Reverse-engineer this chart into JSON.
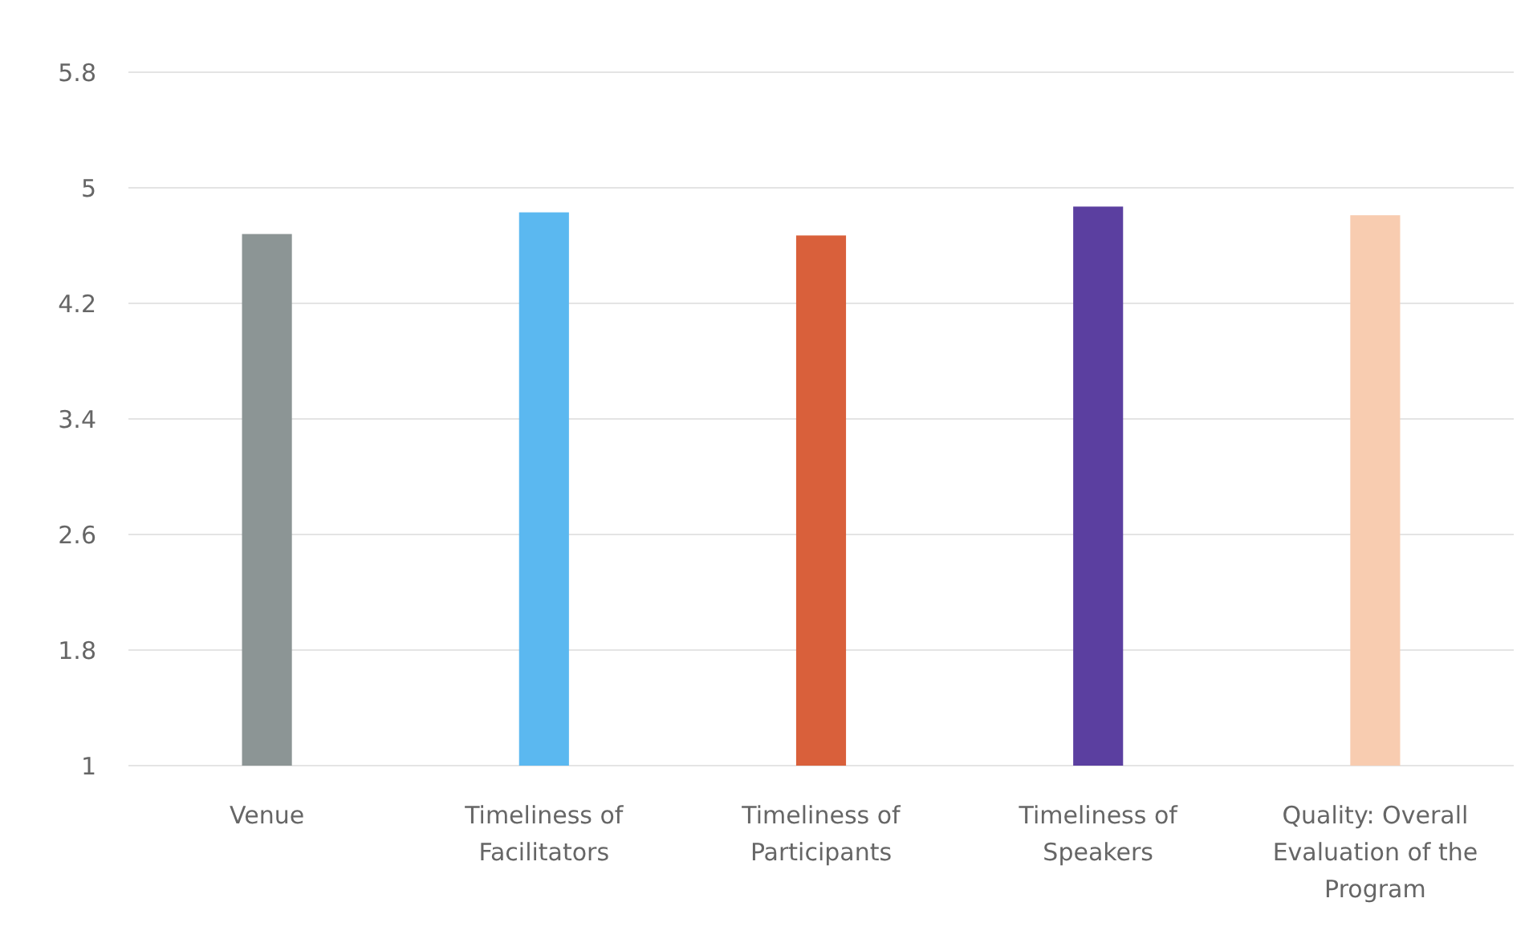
{
  "chart_data": {
    "type": "bar",
    "categories": [
      "Venue",
      "Timeliness of Facilitators",
      "Timeliness of Participants",
      "Timeliness of Speakers",
      "Quality: Overall Evaluation of the Program"
    ],
    "values": [
      4.68,
      4.83,
      4.67,
      4.87,
      4.81
    ],
    "colors": [
      "#8c9595",
      "#5bb8f0",
      "#d9603b",
      "#5b3fa0",
      "#f8ccb0"
    ],
    "ylim": [
      1,
      5.8
    ],
    "yticks": [
      1,
      1.8,
      2.6,
      3.4,
      4.2,
      5,
      5.8
    ],
    "grid": "y"
  }
}
